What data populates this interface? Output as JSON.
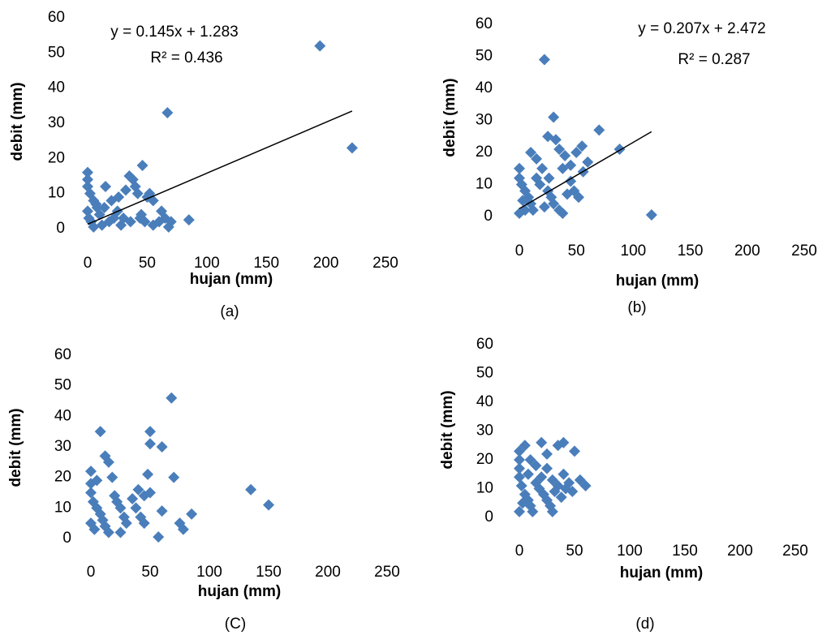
{
  "chart_data": [
    {
      "type": "scatter",
      "x_label": "hujan (mm)",
      "y_label": "debit (mm)",
      "caption": "(a)",
      "color": "#4a7ebb",
      "xlim": [
        0,
        250
      ],
      "ylim": [
        0,
        60
      ],
      "xticks": [
        0,
        50,
        100,
        150,
        200,
        250
      ],
      "yticks": [
        0,
        10,
        20,
        30,
        40,
        50,
        60
      ],
      "trendline": {
        "slope": 0.145,
        "intercept": 1.283,
        "label": "y = 0.145x + 1.283",
        "r2_label": "R² = 0.436"
      },
      "x": [
        195,
        222,
        67,
        46,
        0,
        0,
        0,
        2,
        5,
        8,
        10,
        15,
        20,
        25,
        30,
        35,
        38,
        40,
        42,
        45,
        50,
        52,
        55,
        60,
        62,
        65,
        68,
        70,
        85,
        3,
        5,
        12,
        18,
        22,
        28,
        32,
        36,
        48,
        55,
        0,
        1,
        7,
        14,
        26,
        44
      ],
      "values": [
        52,
        23,
        33,
        18,
        16,
        14,
        12,
        10,
        8,
        6,
        4,
        12,
        8,
        5,
        3,
        15,
        14,
        12,
        10,
        4,
        9,
        10,
        1,
        2,
        5,
        3,
        0.5,
        2,
        2.5,
        2,
        0.5,
        1,
        2,
        3,
        1,
        11,
        2,
        2,
        8,
        5,
        3,
        7,
        6,
        9,
        3
      ]
    },
    {
      "type": "scatter",
      "x_label": "hujan (mm)",
      "y_label": "debit (mm)",
      "caption": "(b)",
      "color": "#4a7ebb",
      "xlim": [
        0,
        250
      ],
      "ylim": [
        0,
        60
      ],
      "xticks": [
        0,
        50,
        100,
        150,
        200,
        250
      ],
      "yticks": [
        0,
        10,
        20,
        30,
        40,
        50,
        60
      ],
      "trendline": {
        "slope": 0.207,
        "intercept": 2.472,
        "label": "y = 0.207x + 2.472",
        "r2_label": "R² = 0.287"
      },
      "x": [
        116,
        22,
        30,
        70,
        88,
        25,
        32,
        55,
        50,
        35,
        40,
        10,
        15,
        20,
        0,
        0,
        2,
        5,
        8,
        10,
        12,
        15,
        18,
        25,
        28,
        30,
        35,
        38,
        42,
        45,
        48,
        52,
        56,
        60,
        38,
        22,
        5,
        0,
        3,
        45,
        26
      ],
      "values": [
        0.5,
        49,
        31,
        27,
        21,
        25,
        24,
        22,
        20,
        21,
        19,
        20,
        18,
        15,
        15,
        12,
        10,
        8,
        6,
        4,
        2,
        12,
        10,
        8,
        6,
        4,
        2,
        1,
        7,
        11,
        8,
        6,
        14,
        17,
        15,
        3,
        2,
        1,
        5,
        16,
        12
      ]
    },
    {
      "type": "scatter",
      "x_label": "hujan (mm)",
      "y_label": "debit (mm)",
      "caption": "(C)",
      "color": "#4a7ebb",
      "xlim": [
        0,
        250
      ],
      "ylim": [
        0,
        60
      ],
      "xticks": [
        0,
        50,
        100,
        150,
        200,
        250
      ],
      "yticks": [
        0,
        10,
        20,
        30,
        40,
        50,
        60
      ],
      "x": [
        68,
        8,
        50,
        50,
        60,
        12,
        15,
        70,
        48,
        135,
        150,
        85,
        75,
        78,
        57,
        60,
        40,
        45,
        50,
        0,
        0,
        0,
        2,
        5,
        8,
        10,
        12,
        15,
        20,
        22,
        25,
        28,
        30,
        35,
        38,
        42,
        45,
        18,
        5,
        0,
        3,
        25
      ],
      "values": [
        46,
        35,
        35,
        31,
        30,
        27,
        25,
        20,
        21,
        16,
        11,
        8,
        5,
        3,
        0.5,
        9,
        16,
        14,
        15,
        22,
        18,
        15,
        12,
        10,
        8,
        6,
        4,
        2,
        14,
        12,
        10,
        7,
        5,
        13,
        10,
        7,
        5,
        20,
        19,
        5,
        3,
        2
      ]
    },
    {
      "type": "scatter",
      "x_label": "hujan (mm)",
      "y_label": "debit (mm)",
      "caption": "(d)",
      "color": "#4a7ebb",
      "xlim": [
        0,
        250
      ],
      "ylim": [
        0,
        60
      ],
      "xticks": [
        0,
        50,
        100,
        150,
        200,
        250
      ],
      "yticks": [
        0,
        10,
        20,
        30,
        40,
        50,
        60
      ],
      "x": [
        0,
        5,
        20,
        40,
        50,
        35,
        10,
        15,
        25,
        60,
        55,
        45,
        40,
        30,
        0,
        0,
        0,
        2,
        5,
        8,
        10,
        12,
        15,
        18,
        22,
        25,
        28,
        30,
        32,
        35,
        38,
        42,
        48,
        3,
        0,
        20,
        25,
        8
      ],
      "values": [
        23,
        25,
        26,
        26,
        23,
        25,
        20,
        18,
        22,
        11,
        13,
        12,
        15,
        13,
        20,
        17,
        14,
        11,
        8,
        6,
        4,
        2,
        12,
        10,
        8,
        6,
        4,
        2,
        9,
        11,
        7,
        10,
        9,
        5,
        2,
        14,
        17,
        15
      ]
    }
  ]
}
